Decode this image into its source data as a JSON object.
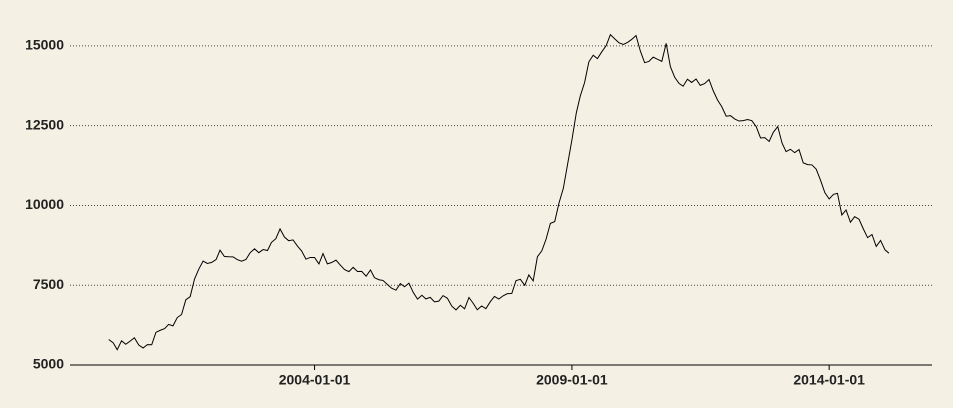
{
  "chart_data": {
    "type": "line",
    "x": [
      "2000-01-01",
      "2000-02-01",
      "2000-03-01",
      "2000-04-01",
      "2000-05-01",
      "2000-06-01",
      "2000-07-01",
      "2000-08-01",
      "2000-09-01",
      "2000-10-01",
      "2000-11-01",
      "2000-12-01",
      "2001-01-01",
      "2001-02-01",
      "2001-03-01",
      "2001-04-01",
      "2001-05-01",
      "2001-06-01",
      "2001-07-01",
      "2001-08-01",
      "2001-09-01",
      "2001-10-01",
      "2001-11-01",
      "2001-12-01",
      "2002-01-01",
      "2002-02-01",
      "2002-03-01",
      "2002-04-01",
      "2002-05-01",
      "2002-06-01",
      "2002-07-01",
      "2002-08-01",
      "2002-09-01",
      "2002-10-01",
      "2002-11-01",
      "2002-12-01",
      "2003-01-01",
      "2003-02-01",
      "2003-03-01",
      "2003-04-01",
      "2003-05-01",
      "2003-06-01",
      "2003-07-01",
      "2003-08-01",
      "2003-09-01",
      "2003-10-01",
      "2003-11-01",
      "2003-12-01",
      "2004-01-01",
      "2004-02-01",
      "2004-03-01",
      "2004-04-01",
      "2004-05-01",
      "2004-06-01",
      "2004-07-01",
      "2004-08-01",
      "2004-09-01",
      "2004-10-01",
      "2004-11-01",
      "2004-12-01",
      "2005-01-01",
      "2005-02-01",
      "2005-03-01",
      "2005-04-01",
      "2005-05-01",
      "2005-06-01",
      "2005-07-01",
      "2005-08-01",
      "2005-09-01",
      "2005-10-01",
      "2005-11-01",
      "2005-12-01",
      "2006-01-01",
      "2006-02-01",
      "2006-03-01",
      "2006-04-01",
      "2006-05-01",
      "2006-06-01",
      "2006-07-01",
      "2006-08-01",
      "2006-09-01",
      "2006-10-01",
      "2006-11-01",
      "2006-12-01",
      "2007-01-01",
      "2007-02-01",
      "2007-03-01",
      "2007-04-01",
      "2007-05-01",
      "2007-06-01",
      "2007-07-01",
      "2007-08-01",
      "2007-09-01",
      "2007-10-01",
      "2007-11-01",
      "2007-12-01",
      "2008-01-01",
      "2008-02-01",
      "2008-03-01",
      "2008-04-01",
      "2008-05-01",
      "2008-06-01",
      "2008-07-01",
      "2008-08-01",
      "2008-09-01",
      "2008-10-01",
      "2008-11-01",
      "2008-12-01",
      "2009-01-01",
      "2009-02-01",
      "2009-03-01",
      "2009-04-01",
      "2009-05-01",
      "2009-06-01",
      "2009-07-01",
      "2009-08-01",
      "2009-09-01",
      "2009-10-01",
      "2009-11-01",
      "2009-12-01",
      "2010-01-01",
      "2010-02-01",
      "2010-03-01",
      "2010-04-01",
      "2010-05-01",
      "2010-06-01",
      "2010-07-01",
      "2010-08-01",
      "2010-09-01",
      "2010-10-01",
      "2010-11-01",
      "2010-12-01",
      "2011-01-01",
      "2011-02-01",
      "2011-03-01",
      "2011-04-01",
      "2011-05-01",
      "2011-06-01",
      "2011-07-01",
      "2011-08-01",
      "2011-09-01",
      "2011-10-01",
      "2011-11-01",
      "2011-12-01",
      "2012-01-01",
      "2012-02-01",
      "2012-03-01",
      "2012-04-01",
      "2012-05-01",
      "2012-06-01",
      "2012-07-01",
      "2012-08-01",
      "2012-09-01",
      "2012-10-01",
      "2012-11-01",
      "2012-12-01",
      "2013-01-01",
      "2013-02-01",
      "2013-03-01",
      "2013-04-01",
      "2013-05-01",
      "2013-06-01",
      "2013-07-01",
      "2013-08-01",
      "2013-09-01",
      "2013-10-01",
      "2013-11-01",
      "2013-12-01",
      "2014-01-01",
      "2014-02-01",
      "2014-03-01",
      "2014-04-01",
      "2014-05-01",
      "2014-06-01",
      "2014-07-01",
      "2014-08-01",
      "2014-09-01",
      "2014-10-01",
      "2014-11-01",
      "2014-12-01",
      "2015-01-01",
      "2015-02-01",
      "2015-03-01"
    ],
    "values": [
      5800,
      5700,
      5480,
      5758,
      5651,
      5747,
      5853,
      5625,
      5534,
      5639,
      5634,
      6023,
      6089,
      6141,
      6271,
      6226,
      6484,
      6583,
      7042,
      7142,
      7694,
      8003,
      8258,
      8182,
      8215,
      8304,
      8599,
      8399,
      8393,
      8390,
      8304,
      8251,
      8307,
      8520,
      8640,
      8520,
      8618,
      8588,
      8842,
      8957,
      9266,
      9011,
      8896,
      8921,
      8732,
      8576,
      8317,
      8370,
      8370,
      8167,
      8491,
      8170,
      8212,
      8286,
      8136,
      7990,
      7927,
      8061,
      7932,
      7934,
      7784,
      7980,
      7737,
      7672,
      7651,
      7524,
      7406,
      7345,
      7553,
      7453,
      7566,
      7279,
      7064,
      7184,
      7072,
      7120,
      6980,
      7001,
      7175,
      7091,
      6847,
      6727,
      6872,
      6762,
      7116,
      6927,
      6731,
      6850,
      6766,
      6979,
      7149,
      7067,
      7170,
      7237,
      7240,
      7645,
      7685,
      7497,
      7822,
      7637,
      8395,
      8575,
      8937,
      9438,
      9494,
      10074,
      10538,
      11286,
      12058,
      12898,
      13426,
      13853,
      14499,
      14707,
      14601,
      14814,
      15009,
      15352,
      15219,
      15098,
      15046,
      15113,
      15202,
      15325,
      14849,
      14474,
      14512,
      14648,
      14579,
      14516,
      15081,
      14348,
      14013,
      13820,
      13737,
      13957,
      13855,
      13962,
      13763,
      13818,
      13948,
      13594,
      13302,
      13093,
      12797,
      12813,
      12713,
      12646,
      12660,
      12692,
      12656,
      12471,
      12115,
      12124,
      12005,
      12298,
      12471,
      11950,
      11689,
      11760,
      11654,
      11751,
      11335,
      11279,
      11270,
      11136,
      10787,
      10404,
      10202,
      10349,
      10380,
      9702,
      9859,
      9474,
      9648,
      9568,
      9262,
      8990,
      9090,
      8717,
      8903,
      8610,
      8504
    ],
    "color": "#000000",
    "xlim": [
      "1999-04-01",
      "2016-01-01"
    ],
    "xticks": [
      "2004-01-01",
      "2009-01-01",
      "2014-01-01"
    ],
    "ylim": [
      5000,
      16000
    ],
    "yticks": [
      5000,
      7500,
      10000,
      12500,
      15000
    ],
    "grid": true
  }
}
